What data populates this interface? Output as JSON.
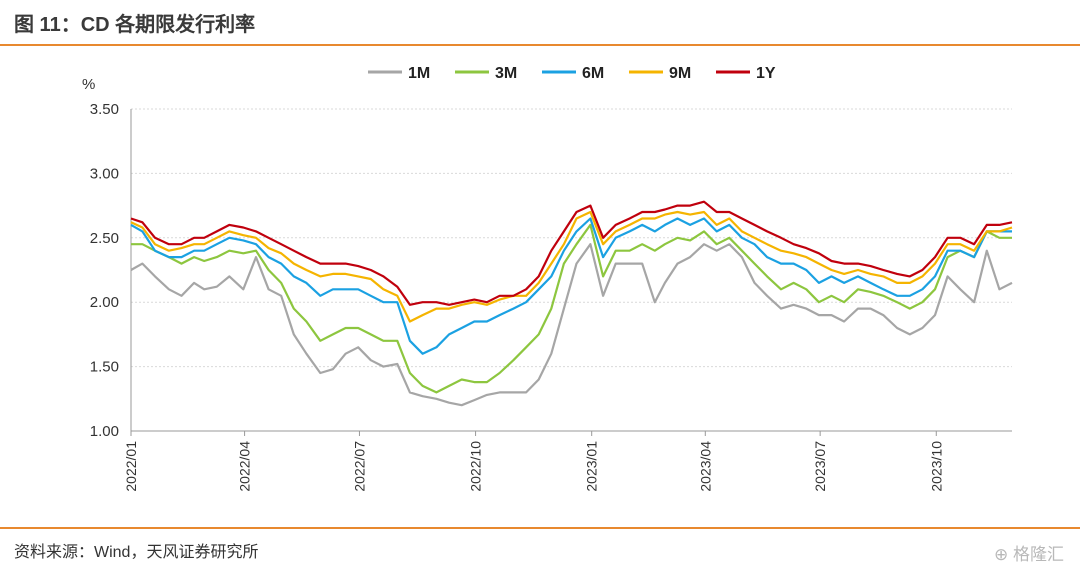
{
  "header": {
    "title": "图 11：CD 各期限发行利率"
  },
  "footer": {
    "source": "资料来源：Wind，天风证券研究所",
    "watermark": "格隆汇"
  },
  "chart_data": {
    "type": "line",
    "unit_label": "%",
    "ylim": [
      1.0,
      3.5
    ],
    "yticks": [
      "3.50",
      "3.00",
      "2.50",
      "2.00",
      "1.50",
      "1.00"
    ],
    "xlim": [
      "2022-01-01",
      "2023-11-30"
    ],
    "xticks": [
      "2022/01",
      "2022/04",
      "2022/07",
      "2022/10",
      "2023/01",
      "2023/04",
      "2023/07",
      "2023/10"
    ],
    "grid": "horizontal",
    "legend_position": "top",
    "x": [
      "2022-01-01",
      "2022-01-10",
      "2022-01-20",
      "2022-01-31",
      "2022-02-10",
      "2022-02-20",
      "2022-02-28",
      "2022-03-10",
      "2022-03-20",
      "2022-03-31",
      "2022-04-10",
      "2022-04-20",
      "2022-04-30",
      "2022-05-10",
      "2022-05-20",
      "2022-05-31",
      "2022-06-10",
      "2022-06-20",
      "2022-06-30",
      "2022-07-10",
      "2022-07-20",
      "2022-07-31",
      "2022-08-10",
      "2022-08-20",
      "2022-08-31",
      "2022-09-10",
      "2022-09-20",
      "2022-09-30",
      "2022-10-10",
      "2022-10-20",
      "2022-10-31",
      "2022-11-10",
      "2022-11-20",
      "2022-11-30",
      "2022-12-10",
      "2022-12-20",
      "2022-12-31",
      "2023-01-10",
      "2023-01-20",
      "2023-01-31",
      "2023-02-10",
      "2023-02-20",
      "2023-02-28",
      "2023-03-10",
      "2023-03-20",
      "2023-03-31",
      "2023-04-10",
      "2023-04-20",
      "2023-04-30",
      "2023-05-10",
      "2023-05-20",
      "2023-05-31",
      "2023-06-10",
      "2023-06-20",
      "2023-06-30",
      "2023-07-10",
      "2023-07-20",
      "2023-07-31",
      "2023-08-10",
      "2023-08-20",
      "2023-08-31",
      "2023-09-10",
      "2023-09-20",
      "2023-09-30",
      "2023-10-10",
      "2023-10-20",
      "2023-10-31",
      "2023-11-10",
      "2023-11-20",
      "2023-11-30"
    ],
    "series": [
      {
        "name": "1M",
        "color": "#a6a6a6",
        "values": [
          2.25,
          2.3,
          2.2,
          2.1,
          2.05,
          2.15,
          2.1,
          2.12,
          2.2,
          2.1,
          2.35,
          2.1,
          2.05,
          1.75,
          1.6,
          1.45,
          1.48,
          1.6,
          1.65,
          1.55,
          1.5,
          1.52,
          1.3,
          1.27,
          1.25,
          1.22,
          1.2,
          1.24,
          1.28,
          1.3,
          1.3,
          1.3,
          1.4,
          1.6,
          1.95,
          2.3,
          2.45,
          2.05,
          2.3,
          2.3,
          2.3,
          2.0,
          2.15,
          2.3,
          2.35,
          2.45,
          2.4,
          2.45,
          2.35,
          2.15,
          2.05,
          1.95,
          1.98,
          1.95,
          1.9,
          1.9,
          1.85,
          1.95,
          1.95,
          1.9,
          1.8,
          1.75,
          1.8,
          1.9,
          2.2,
          2.1,
          2.0,
          2.4,
          2.1,
          2.15
        ]
      },
      {
        "name": "3M",
        "color": "#8dc63f",
        "values": [
          2.45,
          2.45,
          2.4,
          2.35,
          2.3,
          2.35,
          2.32,
          2.35,
          2.4,
          2.38,
          2.4,
          2.25,
          2.15,
          1.95,
          1.85,
          1.7,
          1.75,
          1.8,
          1.8,
          1.75,
          1.7,
          1.7,
          1.45,
          1.35,
          1.3,
          1.35,
          1.4,
          1.38,
          1.38,
          1.45,
          1.55,
          1.65,
          1.75,
          1.95,
          2.3,
          2.45,
          2.6,
          2.2,
          2.4,
          2.4,
          2.45,
          2.4,
          2.45,
          2.5,
          2.48,
          2.55,
          2.45,
          2.5,
          2.4,
          2.3,
          2.2,
          2.1,
          2.15,
          2.1,
          2.0,
          2.05,
          2.0,
          2.1,
          2.08,
          2.05,
          2.0,
          1.95,
          2.0,
          2.1,
          2.35,
          2.4,
          2.35,
          2.55,
          2.5,
          2.5
        ]
      },
      {
        "name": "6M",
        "color": "#1ba1e2",
        "values": [
          2.6,
          2.55,
          2.4,
          2.35,
          2.35,
          2.4,
          2.4,
          2.45,
          2.5,
          2.48,
          2.45,
          2.35,
          2.3,
          2.2,
          2.15,
          2.05,
          2.1,
          2.1,
          2.1,
          2.05,
          2.0,
          2.0,
          1.7,
          1.6,
          1.65,
          1.75,
          1.8,
          1.85,
          1.85,
          1.9,
          1.95,
          2.0,
          2.1,
          2.2,
          2.4,
          2.55,
          2.65,
          2.35,
          2.5,
          2.55,
          2.6,
          2.55,
          2.6,
          2.65,
          2.6,
          2.65,
          2.55,
          2.6,
          2.5,
          2.45,
          2.35,
          2.3,
          2.3,
          2.25,
          2.15,
          2.2,
          2.15,
          2.2,
          2.15,
          2.1,
          2.05,
          2.05,
          2.1,
          2.2,
          2.4,
          2.4,
          2.35,
          2.55,
          2.55,
          2.55
        ]
      },
      {
        "name": "9M",
        "color": "#f5b400",
        "values": [
          2.62,
          2.58,
          2.45,
          2.4,
          2.42,
          2.45,
          2.45,
          2.5,
          2.55,
          2.52,
          2.5,
          2.42,
          2.38,
          2.3,
          2.25,
          2.2,
          2.22,
          2.22,
          2.2,
          2.18,
          2.1,
          2.05,
          1.85,
          1.9,
          1.95,
          1.95,
          1.98,
          2.0,
          1.98,
          2.02,
          2.05,
          2.05,
          2.15,
          2.3,
          2.45,
          2.65,
          2.7,
          2.45,
          2.55,
          2.6,
          2.65,
          2.65,
          2.68,
          2.7,
          2.68,
          2.7,
          2.6,
          2.65,
          2.55,
          2.5,
          2.45,
          2.4,
          2.38,
          2.35,
          2.3,
          2.25,
          2.22,
          2.25,
          2.22,
          2.2,
          2.15,
          2.15,
          2.2,
          2.3,
          2.45,
          2.45,
          2.4,
          2.55,
          2.55,
          2.58
        ]
      },
      {
        "name": "1Y",
        "color": "#c0000d",
        "values": [
          2.65,
          2.62,
          2.5,
          2.45,
          2.45,
          2.5,
          2.5,
          2.55,
          2.6,
          2.58,
          2.55,
          2.5,
          2.45,
          2.4,
          2.35,
          2.3,
          2.3,
          2.3,
          2.28,
          2.25,
          2.2,
          2.12,
          1.98,
          2.0,
          2.0,
          1.98,
          2.0,
          2.02,
          2.0,
          2.05,
          2.05,
          2.1,
          2.2,
          2.4,
          2.55,
          2.7,
          2.75,
          2.5,
          2.6,
          2.65,
          2.7,
          2.7,
          2.72,
          2.75,
          2.75,
          2.78,
          2.7,
          2.7,
          2.65,
          2.6,
          2.55,
          2.5,
          2.45,
          2.42,
          2.38,
          2.32,
          2.3,
          2.3,
          2.28,
          2.25,
          2.22,
          2.2,
          2.25,
          2.35,
          2.5,
          2.5,
          2.45,
          2.6,
          2.6,
          2.62
        ]
      }
    ]
  }
}
